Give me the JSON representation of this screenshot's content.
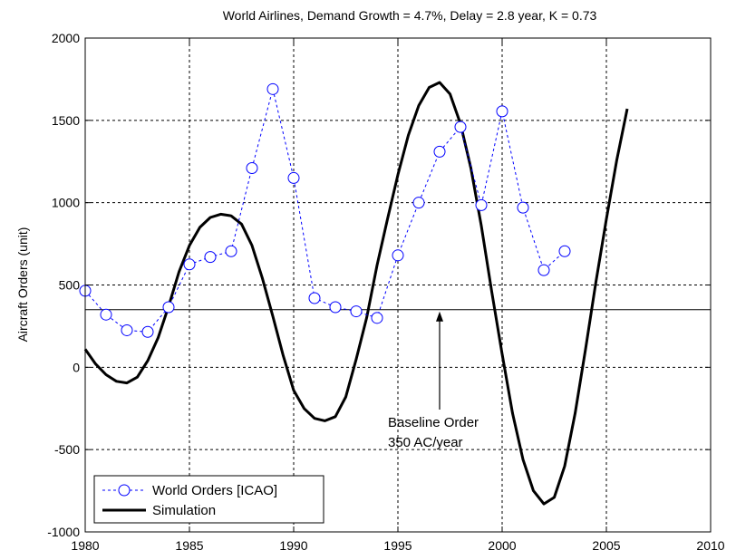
{
  "chart_data": {
    "type": "line",
    "title": "World Airlines, Demand Growth = 4.7%, Delay = 2.8 year, K = 0.73",
    "xlabel": "",
    "ylabel": "Aircraft Orders (unit)",
    "xlim": [
      1980,
      2010
    ],
    "ylim": [
      -1000,
      2000
    ],
    "xticks": [
      "1980",
      "1985",
      "1990",
      "1995",
      "2000",
      "2005",
      "2010"
    ],
    "yticks": [
      "-1000",
      "-500",
      "0",
      "500",
      "1000",
      "1500",
      "2000"
    ],
    "grid": true,
    "legend_position": "bottom-left",
    "series": [
      {
        "name": "World Orders [ICAO]",
        "style": "dashed-circles",
        "color": "#0000ff",
        "x": [
          1980,
          1981,
          1982,
          1983,
          1984,
          1985,
          1986,
          1987,
          1988,
          1989,
          1990,
          1991,
          1992,
          1993,
          1994,
          1995,
          1996,
          1997,
          1998,
          1999,
          2000,
          2001,
          2002,
          2003
        ],
        "y": [
          465,
          320,
          225,
          215,
          365,
          625,
          670,
          705,
          1210,
          1690,
          1150,
          420,
          365,
          340,
          300,
          680,
          1000,
          1310,
          1460,
          985,
          1555,
          970,
          590,
          705
        ]
      },
      {
        "name": "Simulation",
        "style": "solid",
        "color": "#000000",
        "x": [
          1980,
          1980.5,
          1981,
          1981.5,
          1982,
          1982.5,
          1983,
          1983.5,
          1984,
          1984.5,
          1985,
          1985.5,
          1986,
          1986.5,
          1987,
          1987.5,
          1988,
          1988.5,
          1989,
          1989.5,
          1990,
          1990.5,
          1991,
          1991.5,
          1992,
          1992.5,
          1993,
          1993.5,
          1994,
          1994.5,
          1995,
          1995.5,
          1996,
          1996.5,
          1997,
          1997.5,
          1998,
          1998.5,
          1999,
          1999.5,
          2000,
          2000.5,
          2001,
          2001.5,
          2002,
          2002.5,
          2003,
          2003.5,
          2004,
          2004.5,
          2005,
          2005.5,
          2006
        ],
        "y": [
          110,
          20,
          -45,
          -85,
          -95,
          -60,
          40,
          180,
          370,
          580,
          740,
          850,
          910,
          930,
          920,
          870,
          740,
          540,
          310,
          70,
          -140,
          -250,
          -310,
          -325,
          -300,
          -180,
          50,
          300,
          620,
          900,
          1170,
          1410,
          1590,
          1700,
          1730,
          1660,
          1480,
          1210,
          860,
          460,
          80,
          -280,
          -560,
          -750,
          -830,
          -790,
          -600,
          -280,
          110,
          520,
          900,
          1260,
          1570
        ]
      }
    ],
    "annotations": [
      {
        "text_line1": "Baseline Order",
        "text_line2": "350 AC/year",
        "arrow_to": [
          1997,
          350
        ],
        "baseline_y": 350
      }
    ]
  }
}
